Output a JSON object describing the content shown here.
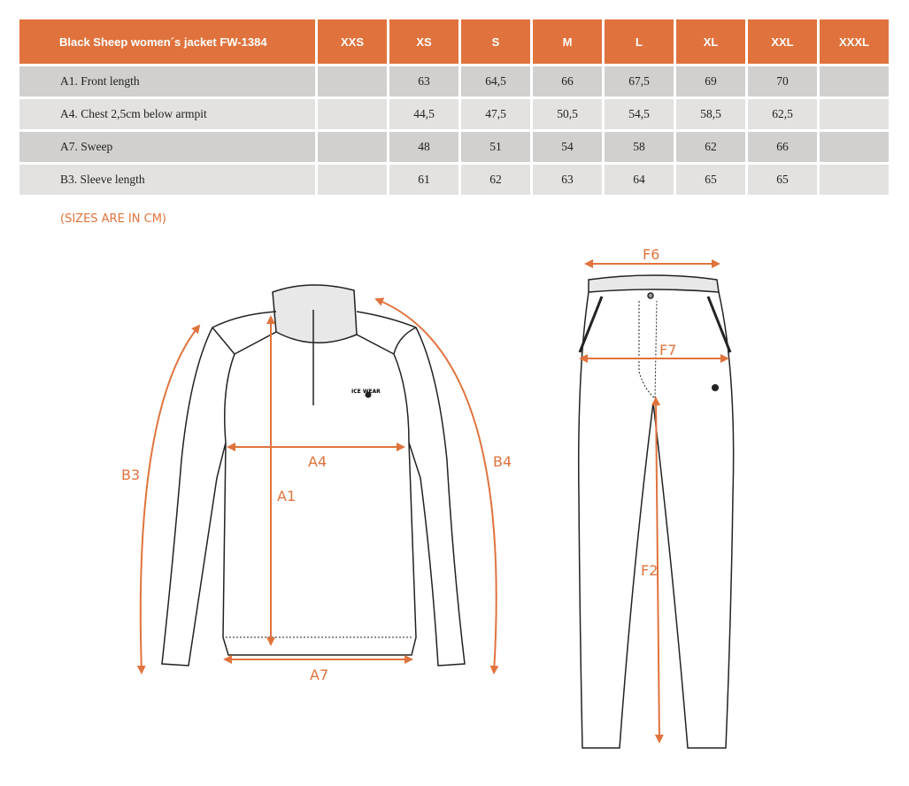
{
  "table": {
    "title": "Black Sheep women´s jacket FW-1384",
    "sizes": [
      "XXS",
      "XS",
      "S",
      "M",
      "L",
      "XL",
      "XXL",
      "XXXL"
    ],
    "rows": [
      {
        "label": "A1. Front length",
        "values": [
          "",
          "63",
          "64,5",
          "66",
          "67,5",
          "69",
          "70",
          ""
        ]
      },
      {
        "label": "A4. Chest 2,5cm below armpit",
        "values": [
          "",
          "44,5",
          "47,5",
          "50,5",
          "54,5",
          "58,5",
          "62,5",
          ""
        ]
      },
      {
        "label": "A7. Sweep",
        "values": [
          "",
          "48",
          "51",
          "54",
          "58",
          "62",
          "66",
          ""
        ]
      },
      {
        "label": "B3. Sleeve length",
        "values": [
          "",
          "61",
          "62",
          "63",
          "64",
          "65",
          "65",
          ""
        ]
      }
    ]
  },
  "note": "(SIZES ARE IN CM)",
  "diagram": {
    "accent_color": "#e0733d",
    "jacket_labels": {
      "a1": "A1",
      "a4": "A4",
      "a7": "A7",
      "b3": "B3",
      "b4": "B4"
    },
    "pants_labels": {
      "f6": "F6",
      "f7": "F7",
      "f2": "F2"
    },
    "logo": "ICE WEAR"
  }
}
